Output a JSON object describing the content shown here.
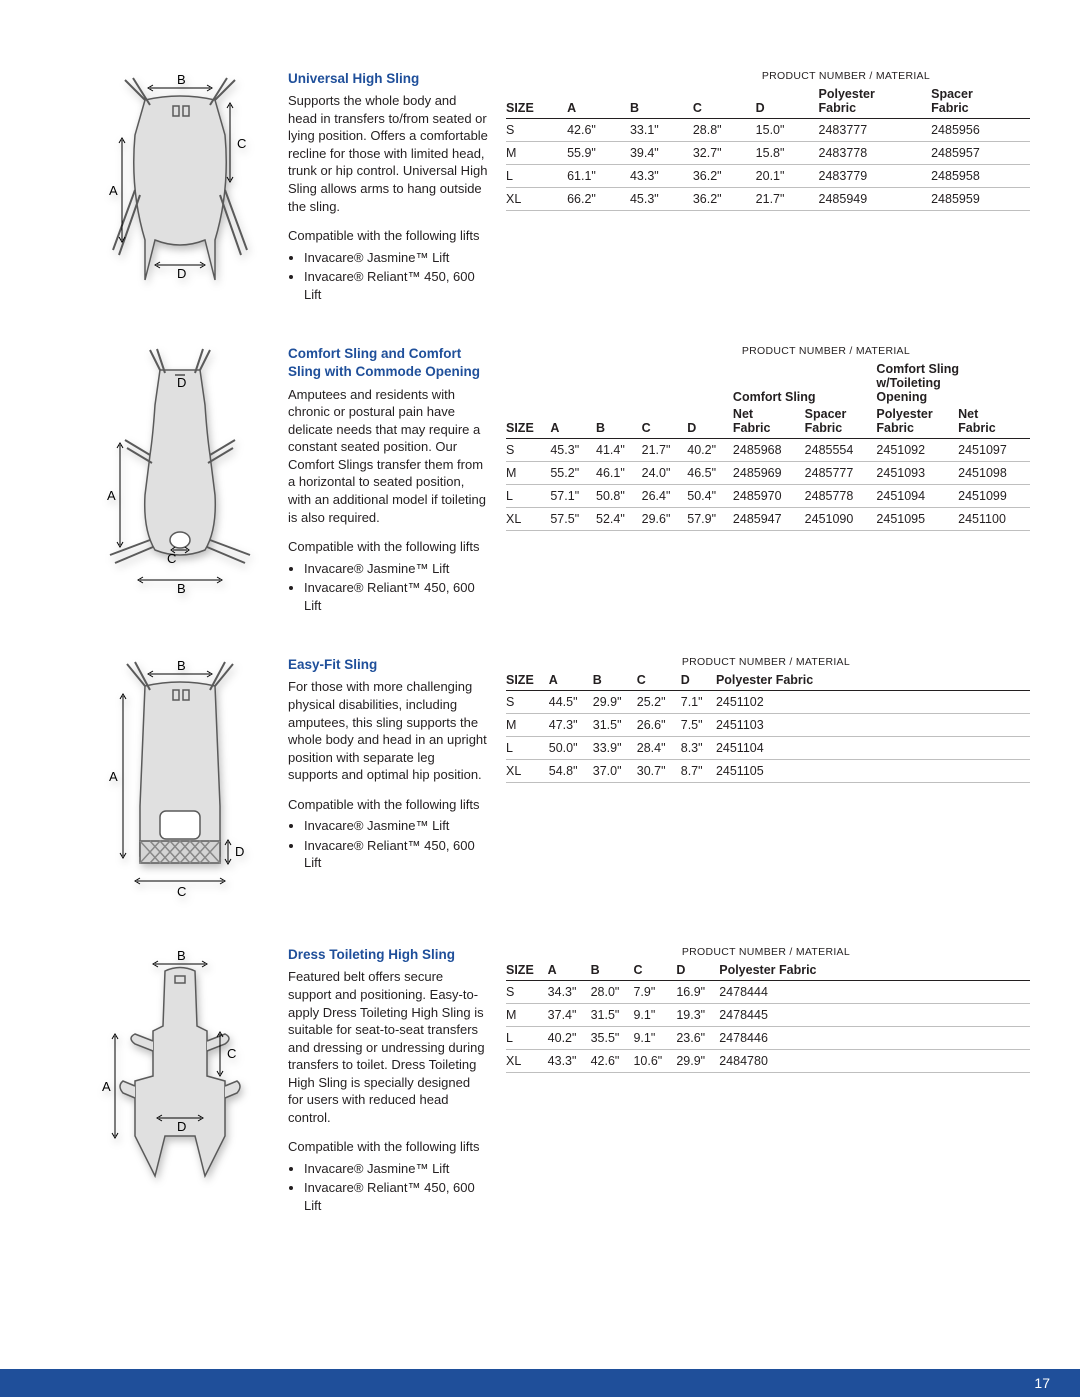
{
  "page_number": "17",
  "product_header": "PRODUCT NUMBER / MATERIAL",
  "compat_label": "Compatible with the following lifts",
  "lifts": [
    "Invacare® Jasmine™ Lift",
    "Invacare® Reliant™ 450, 600 Lift"
  ],
  "col_size": "SIZE",
  "colors": {
    "heading": "#1f4f9a",
    "text": "#231f20",
    "rule": "#bfbfbf",
    "diagram_fill": "#e0e0e0",
    "diagram_stroke": "#5a5a5a",
    "footer": "#1f4f9a"
  },
  "sections": [
    {
      "title": "Universal High Sling",
      "body": "Supports the whole body and head in transfers to/from seated or lying position. Offers a comfortable recline for those with limited head, trunk or hip control. Universal High Sling allows arms to hang outside the sling.",
      "diagram_labels": [
        "A",
        "B",
        "C",
        "D"
      ],
      "cols": [
        "A",
        "B",
        "C",
        "D",
        "Polyester Fabric",
        "Spacer Fabric"
      ],
      "rows": [
        [
          "S",
          "42.6\"",
          "33.1\"",
          "28.8\"",
          "15.0\"",
          "2483777",
          "2485956"
        ],
        [
          "M",
          "55.9\"",
          "39.4\"",
          "32.7\"",
          "15.8\"",
          "2483778",
          "2485957"
        ],
        [
          "L",
          "61.1\"",
          "43.3\"",
          "36.2\"",
          "20.1\"",
          "2483779",
          "2485958"
        ],
        [
          "XL",
          "66.2\"",
          "45.3\"",
          "36.2\"",
          "21.7\"",
          "2485949",
          "2485959"
        ]
      ]
    },
    {
      "title": "Comfort Sling and Comfort Sling with Commode Opening",
      "body": "Amputees and residents with chronic or postural pain have delicate needs that may require a constant seated position. Our Comfort Slings transfer them from a horizontal to seated position, with an additional model if toileting is also required.",
      "diagram_labels": [
        "A",
        "B",
        "C",
        "D"
      ],
      "group_headers": [
        "Comfort Sling",
        "Comfort Sling w/Toileting Opening"
      ],
      "cols": [
        "A",
        "B",
        "C",
        "D",
        "Net Fabric",
        "Spacer Fabric",
        "Polyester Fabric",
        "Net Fabric"
      ],
      "rows": [
        [
          "S",
          "45.3\"",
          "41.4\"",
          "21.7\"",
          "40.2\"",
          "2485968",
          "2485554",
          "2451092",
          "2451097"
        ],
        [
          "M",
          "55.2\"",
          "46.1\"",
          "24.0\"",
          "46.5\"",
          "2485969",
          "2485777",
          "2451093",
          "2451098"
        ],
        [
          "L",
          "57.1\"",
          "50.8\"",
          "26.4\"",
          "50.4\"",
          "2485970",
          "2485778",
          "2451094",
          "2451099"
        ],
        [
          "XL",
          "57.5\"",
          "52.4\"",
          "29.6\"",
          "57.9\"",
          "2485947",
          "2451090",
          "2451095",
          "2451100"
        ]
      ]
    },
    {
      "title": "Easy-Fit Sling",
      "body": "For those with more challenging physical disabilities, including amputees, this sling supports the whole body and head in an upright position with separate leg supports and optimal hip position.",
      "diagram_labels": [
        "A",
        "B",
        "C",
        "D"
      ],
      "cols": [
        "A",
        "B",
        "C",
        "D",
        "Polyester Fabric"
      ],
      "rows": [
        [
          "S",
          "44.5\"",
          "29.9\"",
          "25.2\"",
          "7.1\"",
          "2451102"
        ],
        [
          "M",
          "47.3\"",
          "31.5\"",
          "26.6\"",
          "7.5\"",
          "2451103"
        ],
        [
          "L",
          "50.0\"",
          "33.9\"",
          "28.4\"",
          "8.3\"",
          "2451104"
        ],
        [
          "XL",
          "54.8\"",
          "37.0\"",
          "30.7\"",
          "8.7\"",
          "2451105"
        ]
      ]
    },
    {
      "title": "Dress Toileting High Sling",
      "body": "Featured belt offers secure support and positioning. Easy-to-apply Dress Toileting High Sling is suitable for seat-to-seat transfers and dressing or undressing during transfers to toilet. Dress Toileting High Sling is specially designed for users with reduced head control.",
      "diagram_labels": [
        "A",
        "B",
        "C",
        "D"
      ],
      "cols": [
        "A",
        "B",
        "C",
        "D",
        "Polyester Fabric"
      ],
      "rows": [
        [
          "S",
          "34.3\"",
          "28.0\"",
          "7.9\"",
          "16.9\"",
          "2478444"
        ],
        [
          "M",
          "37.4\"",
          "31.5\"",
          "9.1\"",
          "19.3\"",
          "2478445"
        ],
        [
          "L",
          "40.2\"",
          "35.5\"",
          "9.1\"",
          "23.6\"",
          "2478446"
        ],
        [
          "XL",
          "43.3\"",
          "42.6\"",
          "10.6\"",
          "29.9\"",
          "2484780"
        ]
      ]
    }
  ]
}
